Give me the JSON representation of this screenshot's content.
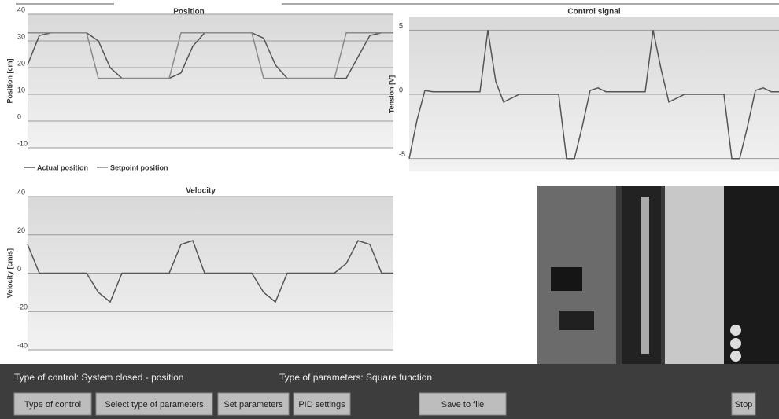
{
  "chart_data": [
    {
      "type": "line",
      "title": "Position",
      "y_label": "Position [cm]",
      "categories": [
        null,
        null,
        null,
        null,
        null,
        null,
        null,
        null,
        null,
        null,
        null,
        null,
        null,
        null,
        null,
        null,
        null,
        null,
        null,
        null,
        null,
        null,
        null,
        null,
        null,
        null,
        null,
        null,
        null,
        null,
        null,
        null
      ],
      "series": [
        {
          "name": "Actual position",
          "color": "#555555",
          "values": [
            21,
            32,
            33,
            33,
            33,
            33,
            30,
            20,
            16,
            16,
            16,
            16,
            16,
            18,
            28,
            33,
            33,
            33,
            33,
            33,
            31,
            21,
            16,
            16,
            16,
            16,
            16,
            16,
            24,
            32,
            33,
            33
          ]
        },
        {
          "name": "Setpoint position",
          "color": "#8a8a8a",
          "values": [
            33,
            33,
            33,
            33,
            33,
            33,
            16,
            16,
            16,
            16,
            16,
            16,
            16,
            33,
            33,
            33,
            33,
            33,
            33,
            33,
            16,
            16,
            16,
            16,
            16,
            16,
            16,
            33,
            33,
            33,
            33,
            33
          ]
        }
      ],
      "ylim": [
        -10,
        40
      ],
      "yticks": [
        40,
        30,
        20,
        10,
        0,
        -10
      ],
      "grid": true,
      "legend": "bottom"
    },
    {
      "type": "line",
      "title": "Control signal",
      "y_label": "Tension [V]",
      "categories": [
        null,
        null,
        null,
        null,
        null,
        null,
        null,
        null,
        null,
        null,
        null,
        null,
        null,
        null,
        null,
        null,
        null,
        null,
        null,
        null,
        null,
        null,
        null,
        null,
        null,
        null,
        null,
        null,
        null,
        null,
        null,
        null,
        null,
        null,
        null,
        null,
        null,
        null,
        null,
        null,
        null,
        null,
        null,
        null,
        null,
        null,
        null,
        null
      ],
      "series": [
        {
          "color": "#555555",
          "values": [
            -5,
            -2,
            0.3,
            0.2,
            0.2,
            0.2,
            0.2,
            0.2,
            0.2,
            0.2,
            5,
            1,
            -0.6,
            -0.3,
            0,
            0,
            0,
            0,
            0,
            0,
            -5,
            -5,
            -2.5,
            0.3,
            0.5,
            0.2,
            0.2,
            0.2,
            0.2,
            0.2,
            0.2,
            5,
            2,
            -0.6,
            -0.3,
            0,
            0,
            0,
            0,
            0,
            0,
            -5,
            -5,
            -2.5,
            0.3,
            0.5,
            0.2,
            0.2
          ]
        }
      ],
      "ylim": [
        -6,
        6
      ],
      "yticks": [
        5,
        0,
        -5
      ],
      "grid": true
    },
    {
      "type": "line",
      "title": "Velocity",
      "y_label": "Velocity [cm/s]",
      "categories": [
        null,
        null,
        null,
        null,
        null,
        null,
        null,
        null,
        null,
        null,
        null,
        null,
        null,
        null,
        null,
        null,
        null,
        null,
        null,
        null,
        null,
        null,
        null,
        null,
        null,
        null,
        null,
        null,
        null,
        null,
        null,
        null
      ],
      "series": [
        {
          "color": "#555555",
          "values": [
            15,
            0,
            0,
            0,
            0,
            0,
            -10,
            -15,
            0,
            0,
            0,
            0,
            0,
            15,
            17,
            0,
            0,
            0,
            0,
            0,
            -10,
            -15,
            0,
            0,
            0,
            0,
            0,
            5,
            17,
            15,
            0,
            0
          ]
        }
      ],
      "ylim": [
        -40,
        40
      ],
      "yticks": [
        40,
        20,
        0,
        -20,
        -40
      ],
      "grid": true
    }
  ],
  "status": {
    "control_type": "Type of control: System closed - position",
    "parameters_type": "Type of parameters: Square function"
  },
  "buttons": [
    "Type of control",
    "Select type of parameters",
    "Set parameters",
    "PID settings",
    "Save to file",
    "Stop"
  ]
}
